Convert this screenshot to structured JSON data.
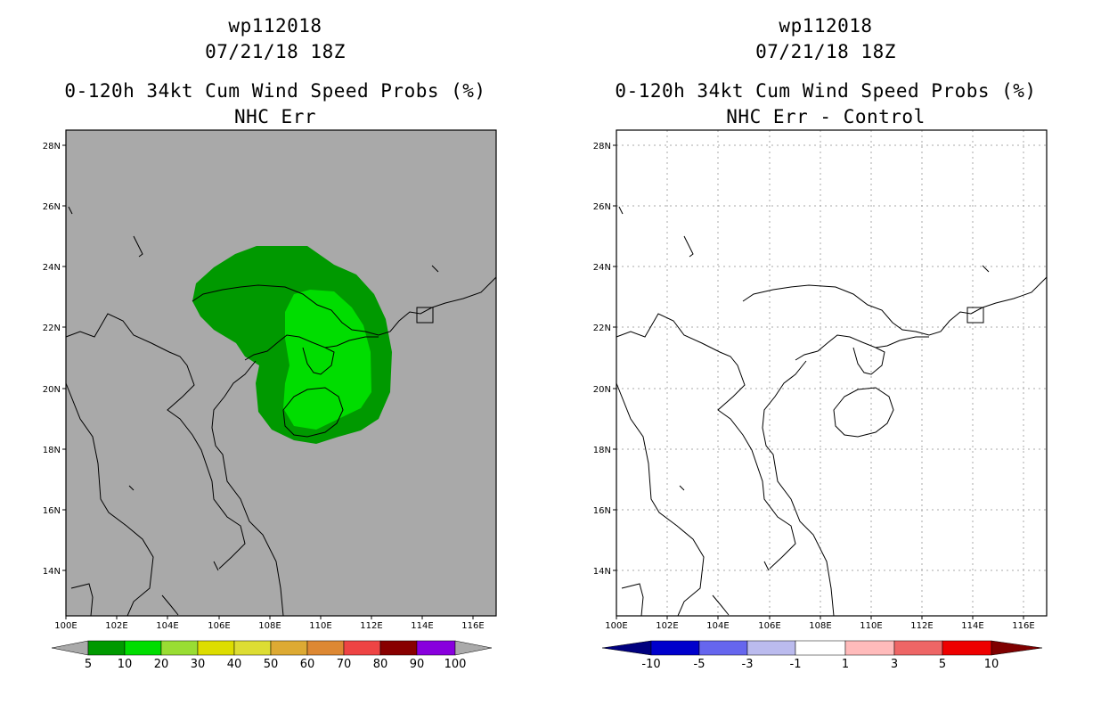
{
  "left_panel": {
    "title": {
      "storm_id": "wp112018",
      "datetime": "07/21/18 18Z",
      "product": "0-120h 34kt Cum Wind Speed Probs (%)",
      "subtitle": "NHC Err"
    },
    "background_color": "#a9a9a9",
    "contour_colors": {
      "p5": "#009900",
      "p10": "#00dd00"
    },
    "colorbar": {
      "labels": [
        "5",
        "10",
        "20",
        "30",
        "40",
        "50",
        "60",
        "70",
        "80",
        "90",
        "100"
      ],
      "colors": [
        "#009900",
        "#00dd00",
        "#99dd33",
        "#dddd00",
        "#dddd33",
        "#ddaa33",
        "#dd8833",
        "#ee4444",
        "#880000",
        "#8800dd"
      ],
      "under_color": "#aaaaaa",
      "over_color": "#aaaaaa"
    }
  },
  "right_panel": {
    "title": {
      "storm_id": "wp112018",
      "datetime": "07/21/18 18Z",
      "product": "0-120h 34kt Cum Wind Speed Probs (%)",
      "subtitle": "NHC Err - Control"
    },
    "background_color": "#ffffff",
    "colorbar": {
      "labels": [
        "-10",
        "-5",
        "-3",
        "-1",
        "1",
        "3",
        "5",
        "10"
      ],
      "colors": [
        "#0000cc",
        "#6666ee",
        "#bbbbee",
        "#ffffff",
        "#ffbbbb",
        "#ee6666",
        "#ee0000"
      ],
      "under_color": "#00007f",
      "over_color": "#7f0000"
    }
  },
  "map": {
    "lat_labels": [
      "28N",
      "26N",
      "24N",
      "22N",
      "20N",
      "18N",
      "16N",
      "14N"
    ],
    "lon_labels": [
      "100E",
      "102E",
      "104E",
      "106E",
      "108E",
      "110E",
      "112E",
      "114E",
      "116E"
    ]
  }
}
